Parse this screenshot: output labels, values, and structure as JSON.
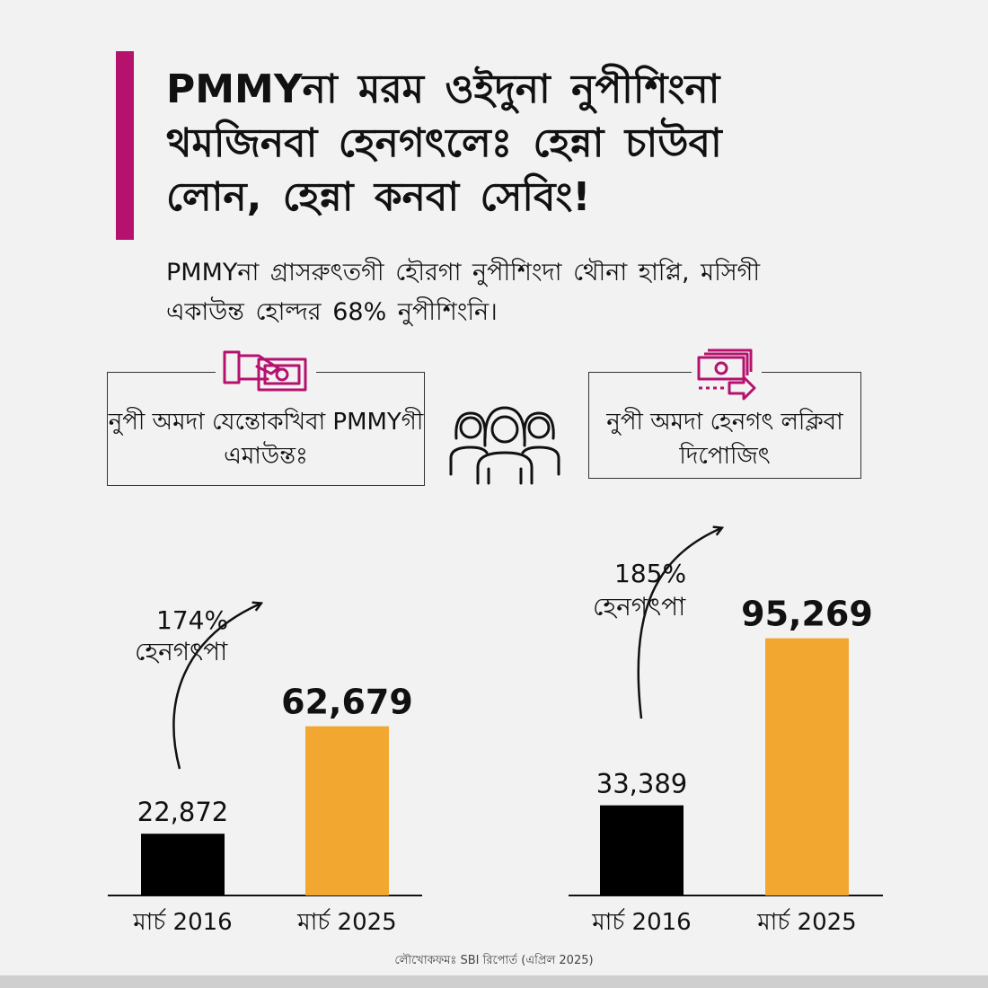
{
  "title": "PMMYনা মরম ওইদুনা নুপীশিংনা থমজিনবা হেনগৎলেঃ হেন্না চাউবা লোন, হেন্না কনবা সেবিং!",
  "subtitle": "PMMYনা গ্রাসরুৎতগী হৌরগা নুপীশিংদা থৌনা হাপ্লি, মসিগী একাউন্ত হোল্দর 68% নুপীশিংনি।",
  "box_left": {
    "label": "নুপী অমদা যেন্তোকখিবা PMMYগী এমাউন্তঃ",
    "icon": "hand-with-banknote-icon"
  },
  "box_right": {
    "label": "নুপী অমদা হেনগৎ লক্লিবা দিপোজিৎ",
    "icon": "banknote-stack-icon"
  },
  "center_icon": "women-group-icon",
  "colors": {
    "accent": "#b5126e",
    "bar_old": "#000000",
    "bar_new": "#f2a830"
  },
  "source": "লৌখোকফমঃ SBI রিপোর্ত (এপ্রিল 2025)",
  "chart_data": [
    {
      "type": "bar",
      "categories": [
        "মার্চ 2016",
        "মার্চ 2025"
      ],
      "values": [
        22872,
        62679
      ],
      "value_labels": [
        "22,872",
        "62,679"
      ],
      "growth_label": [
        "174%",
        "হেনগৎপা"
      ],
      "ylim": [
        0,
        100000
      ]
    },
    {
      "type": "bar",
      "categories": [
        "মার্চ 2016",
        "মার্চ 2025"
      ],
      "values": [
        33389,
        95269
      ],
      "value_labels": [
        "33,389",
        "95,269"
      ],
      "growth_label": [
        "185%",
        "হেনগৎপা"
      ],
      "ylim": [
        0,
        100000
      ]
    }
  ]
}
